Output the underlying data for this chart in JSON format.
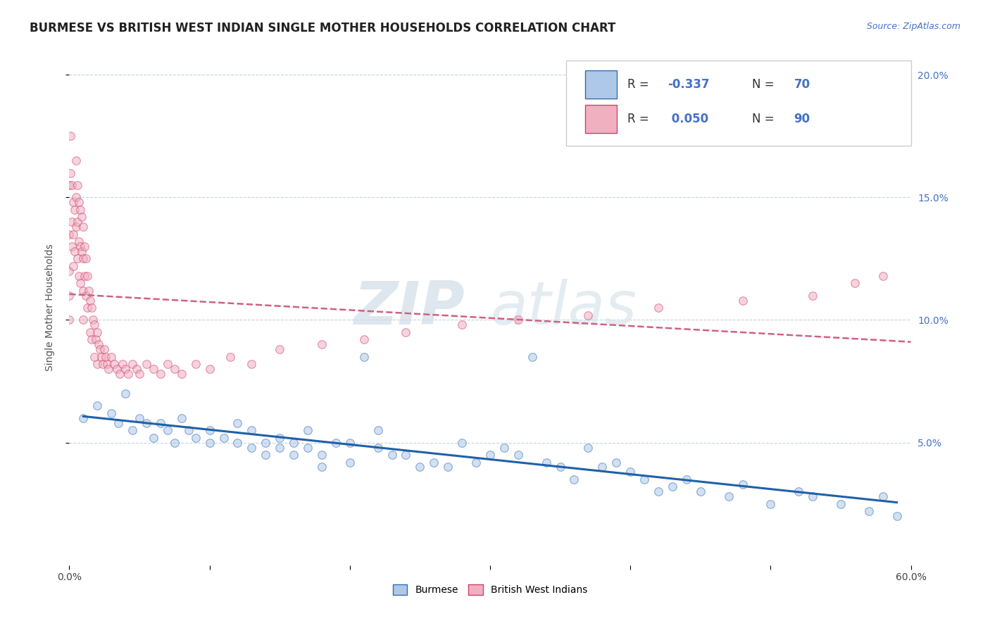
{
  "title": "BURMESE VS BRITISH WEST INDIAN SINGLE MOTHER HOUSEHOLDS CORRELATION CHART",
  "source": "Source: ZipAtlas.com",
  "ylabel": "Single Mother Households",
  "xlim": [
    0.0,
    0.6
  ],
  "ylim": [
    0.0,
    0.21
  ],
  "xtick_positions": [
    0.0,
    0.1,
    0.2,
    0.3,
    0.4,
    0.5,
    0.6
  ],
  "xtick_labels": [
    "0.0%",
    "",
    "",
    "",
    "",
    "",
    "60.0%"
  ],
  "yticks_right": [
    0.05,
    0.1,
    0.15,
    0.2
  ],
  "ytick_labels_right": [
    "5.0%",
    "10.0%",
    "15.0%",
    "20.0%"
  ],
  "burmese_R": -0.337,
  "burmese_N": 70,
  "bwi_R": 0.05,
  "bwi_N": 90,
  "burmese_color": "#adc8e8",
  "burmese_edge_color": "#3070b0",
  "bwi_color": "#f0b0c0",
  "bwi_edge_color": "#d04070",
  "burmese_line_color": "#2060a8",
  "bwi_line_color": "#d06080",
  "watermark_top": "ZIP",
  "watermark_bot": "atlas",
  "background_color": "#ffffff",
  "grid_color": "#c8d4e0",
  "title_fontsize": 12,
  "label_fontsize": 10,
  "tick_fontsize": 10,
  "scatter_alpha": 0.55,
  "scatter_size": 70,
  "burmese_x": [
    0.01,
    0.02,
    0.03,
    0.035,
    0.04,
    0.045,
    0.05,
    0.055,
    0.06,
    0.065,
    0.07,
    0.075,
    0.08,
    0.085,
    0.09,
    0.1,
    0.1,
    0.11,
    0.12,
    0.12,
    0.13,
    0.13,
    0.14,
    0.14,
    0.15,
    0.15,
    0.16,
    0.16,
    0.17,
    0.17,
    0.18,
    0.18,
    0.19,
    0.2,
    0.2,
    0.21,
    0.22,
    0.22,
    0.23,
    0.24,
    0.25,
    0.26,
    0.27,
    0.28,
    0.29,
    0.3,
    0.31,
    0.32,
    0.33,
    0.34,
    0.35,
    0.36,
    0.37,
    0.38,
    0.39,
    0.4,
    0.41,
    0.42,
    0.43,
    0.44,
    0.45,
    0.47,
    0.48,
    0.5,
    0.52,
    0.53,
    0.55,
    0.57,
    0.58,
    0.59
  ],
  "burmese_y": [
    0.06,
    0.065,
    0.062,
    0.058,
    0.07,
    0.055,
    0.06,
    0.058,
    0.052,
    0.058,
    0.055,
    0.05,
    0.06,
    0.055,
    0.052,
    0.055,
    0.05,
    0.052,
    0.058,
    0.05,
    0.048,
    0.055,
    0.05,
    0.045,
    0.048,
    0.052,
    0.045,
    0.05,
    0.048,
    0.055,
    0.045,
    0.04,
    0.05,
    0.042,
    0.05,
    0.085,
    0.048,
    0.055,
    0.045,
    0.045,
    0.04,
    0.042,
    0.04,
    0.05,
    0.042,
    0.045,
    0.048,
    0.045,
    0.085,
    0.042,
    0.04,
    0.035,
    0.048,
    0.04,
    0.042,
    0.038,
    0.035,
    0.03,
    0.032,
    0.035,
    0.03,
    0.028,
    0.033,
    0.025,
    0.03,
    0.028,
    0.025,
    0.022,
    0.028,
    0.02
  ],
  "bwi_x": [
    0.0,
    0.0,
    0.0,
    0.0,
    0.0,
    0.001,
    0.001,
    0.002,
    0.002,
    0.002,
    0.003,
    0.003,
    0.003,
    0.004,
    0.004,
    0.005,
    0.005,
    0.005,
    0.006,
    0.006,
    0.006,
    0.007,
    0.007,
    0.007,
    0.008,
    0.008,
    0.008,
    0.009,
    0.009,
    0.01,
    0.01,
    0.01,
    0.01,
    0.011,
    0.011,
    0.012,
    0.012,
    0.013,
    0.013,
    0.014,
    0.015,
    0.015,
    0.016,
    0.016,
    0.017,
    0.018,
    0.018,
    0.019,
    0.02,
    0.02,
    0.021,
    0.022,
    0.023,
    0.024,
    0.025,
    0.026,
    0.027,
    0.028,
    0.03,
    0.032,
    0.034,
    0.036,
    0.038,
    0.04,
    0.042,
    0.045,
    0.048,
    0.05,
    0.055,
    0.06,
    0.065,
    0.07,
    0.075,
    0.08,
    0.09,
    0.1,
    0.115,
    0.13,
    0.15,
    0.18,
    0.21,
    0.24,
    0.28,
    0.32,
    0.37,
    0.42,
    0.48,
    0.53,
    0.56,
    0.58
  ],
  "bwi_y": [
    0.155,
    0.135,
    0.12,
    0.11,
    0.1,
    0.175,
    0.16,
    0.155,
    0.14,
    0.13,
    0.148,
    0.135,
    0.122,
    0.145,
    0.128,
    0.165,
    0.15,
    0.138,
    0.155,
    0.14,
    0.125,
    0.148,
    0.132,
    0.118,
    0.145,
    0.13,
    0.115,
    0.142,
    0.128,
    0.138,
    0.125,
    0.112,
    0.1,
    0.13,
    0.118,
    0.125,
    0.11,
    0.118,
    0.105,
    0.112,
    0.108,
    0.095,
    0.105,
    0.092,
    0.1,
    0.098,
    0.085,
    0.092,
    0.095,
    0.082,
    0.09,
    0.088,
    0.085,
    0.082,
    0.088,
    0.085,
    0.082,
    0.08,
    0.085,
    0.082,
    0.08,
    0.078,
    0.082,
    0.08,
    0.078,
    0.082,
    0.08,
    0.078,
    0.082,
    0.08,
    0.078,
    0.082,
    0.08,
    0.078,
    0.082,
    0.08,
    0.085,
    0.082,
    0.088,
    0.09,
    0.092,
    0.095,
    0.098,
    0.1,
    0.102,
    0.105,
    0.108,
    0.11,
    0.115,
    0.118
  ]
}
